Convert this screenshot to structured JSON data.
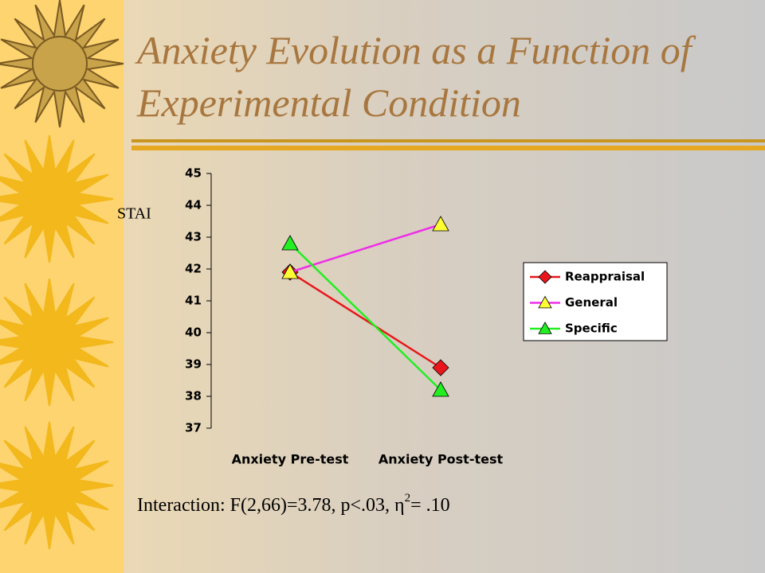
{
  "chart_data": {
    "type": "line",
    "title": "Anxiety Evolution as a Function of Experimental Condition",
    "y_label": "STAI",
    "categories": [
      "Anxiety Pre-test",
      "Anxiety Post-test"
    ],
    "series": [
      {
        "name": "Reappraisal",
        "color": "#e8161b",
        "marker": "diamond",
        "marker_color": "#e8161b",
        "values": [
          41.9,
          38.9
        ]
      },
      {
        "name": "General",
        "color": "#ee2ee8",
        "marker": "triangle",
        "marker_color": "#ffff33",
        "values": [
          41.9,
          43.4
        ]
      },
      {
        "name": "Specific",
        "color": "#22ee22",
        "marker": "triangle",
        "marker_color": "#22ee22",
        "values": [
          42.8,
          38.2
        ]
      }
    ],
    "ylim": [
      37,
      45
    ],
    "yticks": [
      37,
      38,
      39,
      40,
      41,
      42,
      43,
      44,
      45
    ],
    "legend": "right",
    "annotation": {
      "text": "Interaction: F(2,66)=3.78, p<.03, η",
      "superscript": "2",
      "tail": "= .10"
    }
  }
}
